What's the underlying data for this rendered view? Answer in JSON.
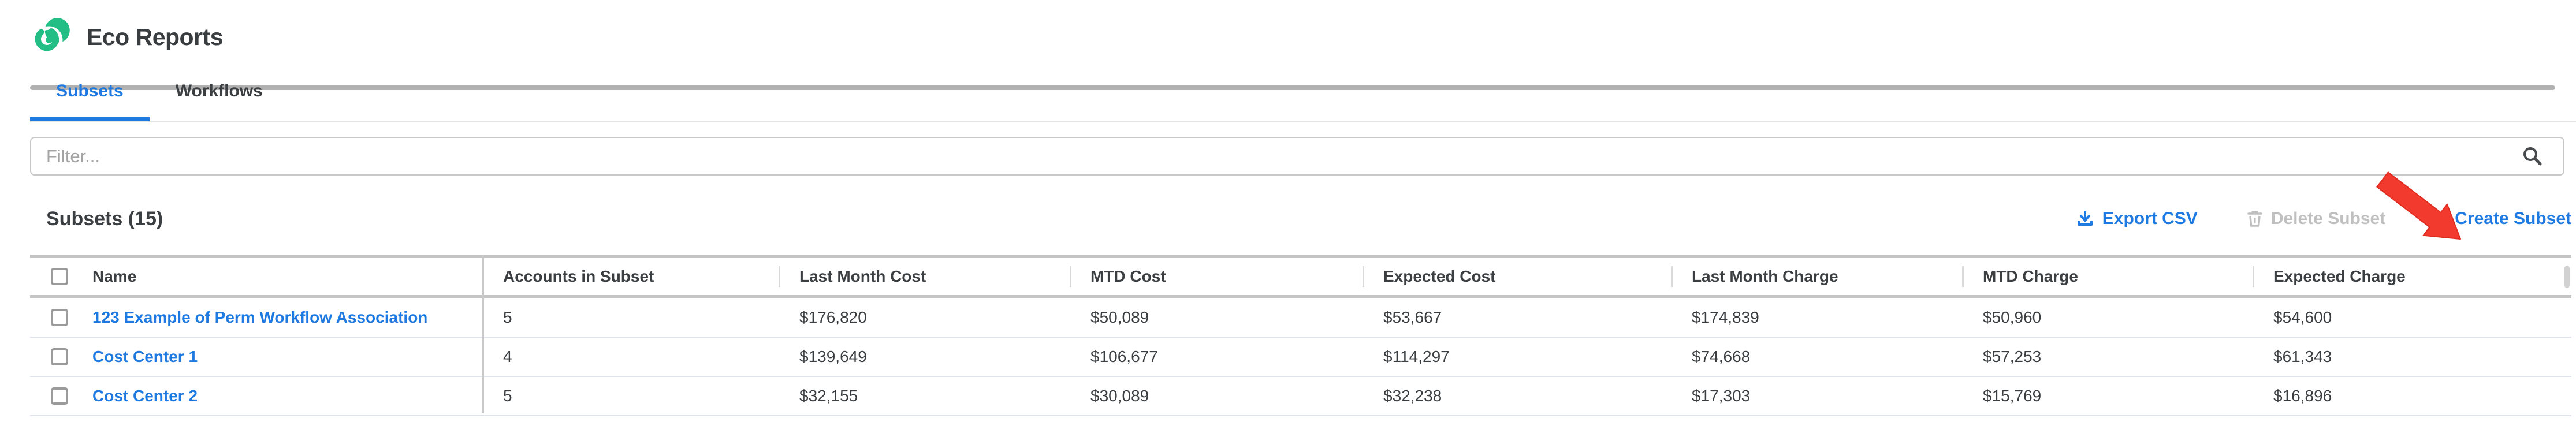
{
  "header": {
    "title": "Eco Reports"
  },
  "tabs": [
    {
      "label": "Subsets",
      "active": true
    },
    {
      "label": "Workflows",
      "active": false
    }
  ],
  "filter": {
    "placeholder": "Filter...",
    "value": ""
  },
  "section": {
    "title": "Subsets (15)"
  },
  "actions": {
    "export_label": "Export CSV",
    "delete_label": "Delete Subset",
    "plus": "+",
    "create_label": "Create Subset"
  },
  "table": {
    "columns": [
      "Name",
      "Accounts in Subset",
      "Last Month Cost",
      "MTD Cost",
      "Expected Cost",
      "Last Month Charge",
      "MTD Charge",
      "Expected Charge"
    ],
    "checkboxes_checked": false,
    "rows": [
      {
        "name": "123 Example of Perm Workflow Association",
        "values": [
          "5",
          "$176,820",
          "$50,089",
          "$53,667",
          "$174,839",
          "$50,960",
          "$54,600"
        ]
      },
      {
        "name": "Cost Center 1",
        "values": [
          "4",
          "$139,649",
          "$106,677",
          "$114,297",
          "$74,668",
          "$57,253",
          "$61,343"
        ]
      },
      {
        "name": "Cost Center 2",
        "values": [
          "5",
          "$32,155",
          "$30,089",
          "$32,238",
          "$17,303",
          "$15,769",
          "$16,896"
        ]
      }
    ]
  },
  "icons": {
    "logo": "eco-spiral-logo",
    "search": "search-icon",
    "export": "download-icon",
    "delete": "trash-icon",
    "annotation": "red-arrow pointing at Create Subset"
  },
  "colors": {
    "brand_green": "#23be85",
    "link_blue": "#1e79e0",
    "disabled_gray": "#c0c0c0",
    "arrow_red": "#f23b2e",
    "text_dark": "#3c3f42"
  }
}
